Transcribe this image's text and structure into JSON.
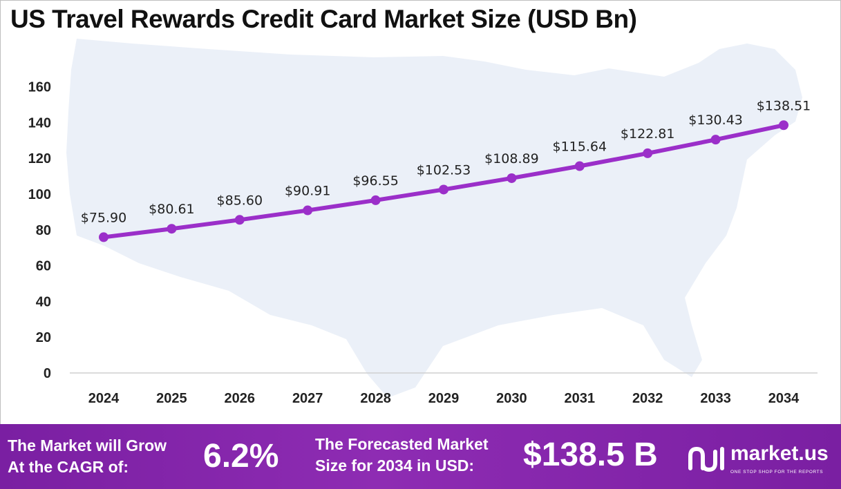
{
  "title": "US Travel Rewards Credit Card Market Size (USD Bn)",
  "chart_data": {
    "type": "line",
    "title": "US Travel Rewards Credit Card Market Size (USD Bn)",
    "categories": [
      "2024",
      "2025",
      "2026",
      "2027",
      "2028",
      "2029",
      "2030",
      "2031",
      "2032",
      "2033",
      "2034"
    ],
    "values": [
      75.9,
      80.61,
      85.6,
      90.91,
      96.55,
      102.53,
      108.89,
      115.64,
      122.81,
      130.43,
      138.51
    ],
    "data_labels": [
      "$75.90",
      "$80.61",
      "$85.60",
      "$90.91",
      "$96.55",
      "$102.53",
      "$108.89",
      "$115.64",
      "$122.81",
      "$130.43",
      "$138.51"
    ],
    "yticks": [
      "0",
      "20",
      "40",
      "60",
      "80",
      "100",
      "120",
      "140",
      "160"
    ],
    "ylim": [
      0,
      160
    ],
    "grid": false,
    "legend": "none",
    "line_color": "#9b2fc9",
    "background_shape": "us-map"
  },
  "footer": {
    "cagr_label": "The Market will Grow\nAt the CAGR of:",
    "cagr_value": "6.2%",
    "forecast_label": "The Forecasted Market\nSize for 2034 in USD:",
    "forecast_value": "$138.5 B",
    "brand_name": "market.us",
    "brand_tagline": "ONE STOP SHOP FOR THE REPORTS",
    "background_color": "#7a1fa2"
  }
}
